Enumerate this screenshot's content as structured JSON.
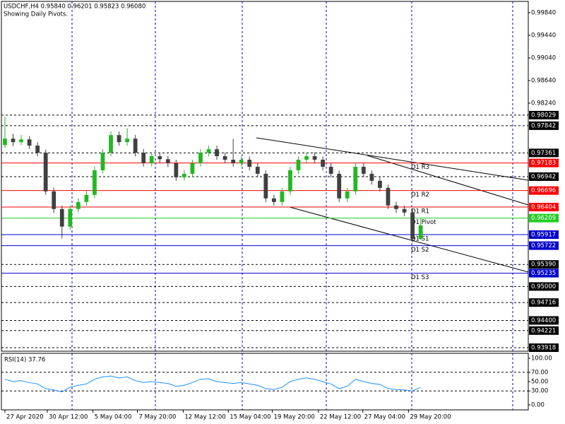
{
  "chart_data": {
    "type": "candlestick",
    "title": "USDCHF,H4  0.95840 0.96201 0.95823 0.96080",
    "subtitle": "Showing Daily Pivots.",
    "up_color": "#22b822",
    "down_color": "#404040",
    "candles": [
      [
        0.975,
        0.98,
        0.9745,
        0.97614
      ],
      [
        0.97614,
        0.977,
        0.9748,
        0.97552
      ],
      [
        0.97552,
        0.9768,
        0.975,
        0.976
      ],
      [
        0.976,
        0.9766,
        0.9743,
        0.9749
      ],
      [
        0.9749,
        0.9755,
        0.973,
        0.97365
      ],
      [
        0.97365,
        0.9742,
        0.9662,
        0.96681
      ],
      [
        0.96681,
        0.9675,
        0.963,
        0.9637
      ],
      [
        0.9637,
        0.9643,
        0.9585,
        0.96059
      ],
      [
        0.96059,
        0.9643,
        0.96,
        0.9637
      ],
      [
        0.9637,
        0.9656,
        0.9631,
        0.96494
      ],
      [
        0.96494,
        0.9669,
        0.9643,
        0.96619
      ],
      [
        0.96619,
        0.9712,
        0.9656,
        0.97054
      ],
      [
        0.97054,
        0.9743,
        0.97,
        0.97365
      ],
      [
        0.97365,
        0.9774,
        0.973,
        0.97676
      ],
      [
        0.97676,
        0.9774,
        0.9749,
        0.97552
      ],
      [
        0.97552,
        0.978,
        0.9749,
        0.97614
      ],
      [
        0.97614,
        0.9768,
        0.973,
        0.97365
      ],
      [
        0.97365,
        0.9743,
        0.9712,
        0.97179
      ],
      [
        0.97179,
        0.9737,
        0.9712,
        0.97303
      ],
      [
        0.97303,
        0.9737,
        0.9718,
        0.9725
      ],
      [
        0.9725,
        0.9731,
        0.9711,
        0.97179
      ],
      [
        0.97179,
        0.9724,
        0.9687,
        0.9693
      ],
      [
        0.9693,
        0.9706,
        0.9687,
        0.96992
      ],
      [
        0.96992,
        0.9724,
        0.9693,
        0.97179
      ],
      [
        0.97179,
        0.9743,
        0.9712,
        0.97365
      ],
      [
        0.97365,
        0.9749,
        0.973,
        0.97427
      ],
      [
        0.97427,
        0.9749,
        0.9724,
        0.97303
      ],
      [
        0.97303,
        0.9737,
        0.9718,
        0.97241
      ],
      [
        0.97241,
        0.9761,
        0.9712,
        0.97179
      ],
      [
        0.97179,
        0.973,
        0.9712,
        0.97241
      ],
      [
        0.97241,
        0.973,
        0.9705,
        0.97116
      ],
      [
        0.97116,
        0.9718,
        0.9693,
        0.96992
      ],
      [
        0.96992,
        0.9705,
        0.9649,
        0.96557
      ],
      [
        0.96557,
        0.9662,
        0.9643,
        0.96494
      ],
      [
        0.96494,
        0.9674,
        0.9643,
        0.96681
      ],
      [
        0.96681,
        0.9712,
        0.9662,
        0.97054
      ],
      [
        0.97054,
        0.973,
        0.9699,
        0.97241
      ],
      [
        0.97241,
        0.9737,
        0.9718,
        0.97303
      ],
      [
        0.97303,
        0.9737,
        0.9718,
        0.97241
      ],
      [
        0.97241,
        0.973,
        0.9705,
        0.97116
      ],
      [
        0.97116,
        0.9718,
        0.9693,
        0.96992
      ],
      [
        0.96992,
        0.9705,
        0.9649,
        0.96557
      ],
      [
        0.96557,
        0.9674,
        0.9649,
        0.96681
      ],
      [
        0.96681,
        0.9718,
        0.9662,
        0.97116
      ],
      [
        0.97116,
        0.9718,
        0.9693,
        0.96992
      ],
      [
        0.96992,
        0.9705,
        0.968,
        0.96868
      ],
      [
        0.96868,
        0.9693,
        0.9668,
        0.96743
      ],
      [
        0.96743,
        0.968,
        0.9637,
        0.96432
      ],
      [
        0.96432,
        0.965,
        0.963,
        0.9637
      ],
      [
        0.9637,
        0.9643,
        0.9624,
        0.96308
      ],
      [
        0.96308,
        0.9637,
        0.9578,
        0.9584
      ],
      [
        0.9584,
        0.96201,
        0.95823,
        0.9608
      ]
    ],
    "xlim": [
      -0.43,
      64.2
    ],
    "xticks": [
      {
        "value": 0,
        "label": "27 Apr 2020"
      },
      {
        "value": 5.2,
        "label": "30 Apr 12:00"
      },
      {
        "value": 10.8,
        "label": "5 May 04:00"
      },
      {
        "value": 16.25,
        "label": "7 May 20:00"
      },
      {
        "value": 21.87,
        "label": "12 May 12:00"
      },
      {
        "value": 27.4,
        "label": "15 May 04:00"
      },
      {
        "value": 32.8,
        "label": "19 May 20:00"
      },
      {
        "value": 38.46,
        "label": "22 May 12:00"
      },
      {
        "value": 43.9,
        "label": "27 May 04:00"
      },
      {
        "value": 49.5,
        "label": "29 May 20:00"
      }
    ],
    "ylim": [
      0.93856,
      1.00039
    ],
    "yticks": [
      {
        "value": 0.9984,
        "label": "0.99840"
      },
      {
        "value": 0.9944,
        "label": "0.99440"
      },
      {
        "value": 0.9904,
        "label": "0.99040"
      },
      {
        "value": 0.9864,
        "label": "0.98640"
      },
      {
        "value": 0.9824,
        "label": "0.98240"
      }
    ],
    "hlines": [
      {
        "value": 0.98029,
        "label": "0.98029"
      },
      {
        "value": 0.97842,
        "label": "0.97842"
      },
      {
        "value": 0.97361,
        "label": "0.97361"
      },
      {
        "value": 0.96942,
        "label": "0.96942"
      },
      {
        "value": 0.9539,
        "label": "0.95390"
      },
      {
        "value": 0.95,
        "label": "0.95000"
      },
      {
        "value": 0.94716,
        "label": "0.94716"
      },
      {
        "value": 0.944,
        "label": "0.94400"
      },
      {
        "value": 0.94221,
        "label": "0.94221"
      },
      {
        "value": 0.93918,
        "label": "0.93918"
      }
    ],
    "pivots": [
      {
        "name": "D1 R3",
        "value": 0.97183,
        "label": "0.97183",
        "color": "#ff0000"
      },
      {
        "name": "D1 R2",
        "value": 0.96696,
        "label": "0.96696",
        "color": "#ff0000"
      },
      {
        "name": "D1 R1",
        "value": 0.96404,
        "label": "0.96404",
        "color": "#ff0000"
      },
      {
        "name": "D1 Pivot",
        "value": 0.96209,
        "label": "0.96209",
        "color": "#22cc22"
      },
      {
        "name": "D1 S1",
        "value": 0.95917,
        "label": "0.95917",
        "color": "#0000cc"
      },
      {
        "name": "D1 S2",
        "value": 0.95722,
        "label": "0.95722",
        "color": "#0000cc"
      },
      {
        "name": "D1 S3",
        "value": 0.95235,
        "label": "0.95235",
        "color": "#0000cc"
      }
    ],
    "rsi": {
      "title": "RSI(14) 37.76",
      "color": "#1e90ff",
      "ylim": [
        -10.6,
        110.6
      ],
      "yticks": [
        {
          "value": 100,
          "label": "100.00"
        },
        {
          "value": 70,
          "label": "70.00"
        },
        {
          "value": 50,
          "label": "50.00"
        },
        {
          "value": 30,
          "label": "30.00"
        },
        {
          "value": 0,
          "label": "0.00"
        }
      ],
      "dashed_levels": [
        70,
        30
      ],
      "values": [
        55,
        50,
        52,
        48,
        45,
        35,
        32,
        28,
        38,
        42,
        45,
        55,
        60,
        62,
        58,
        60,
        52,
        48,
        50,
        48,
        46,
        40,
        42,
        48,
        55,
        56,
        50,
        48,
        46,
        48,
        45,
        42,
        35,
        33,
        38,
        50,
        55,
        58,
        55,
        50,
        45,
        35,
        40,
        55,
        50,
        46,
        44,
        35,
        33,
        32,
        30,
        37.76
      ]
    }
  }
}
